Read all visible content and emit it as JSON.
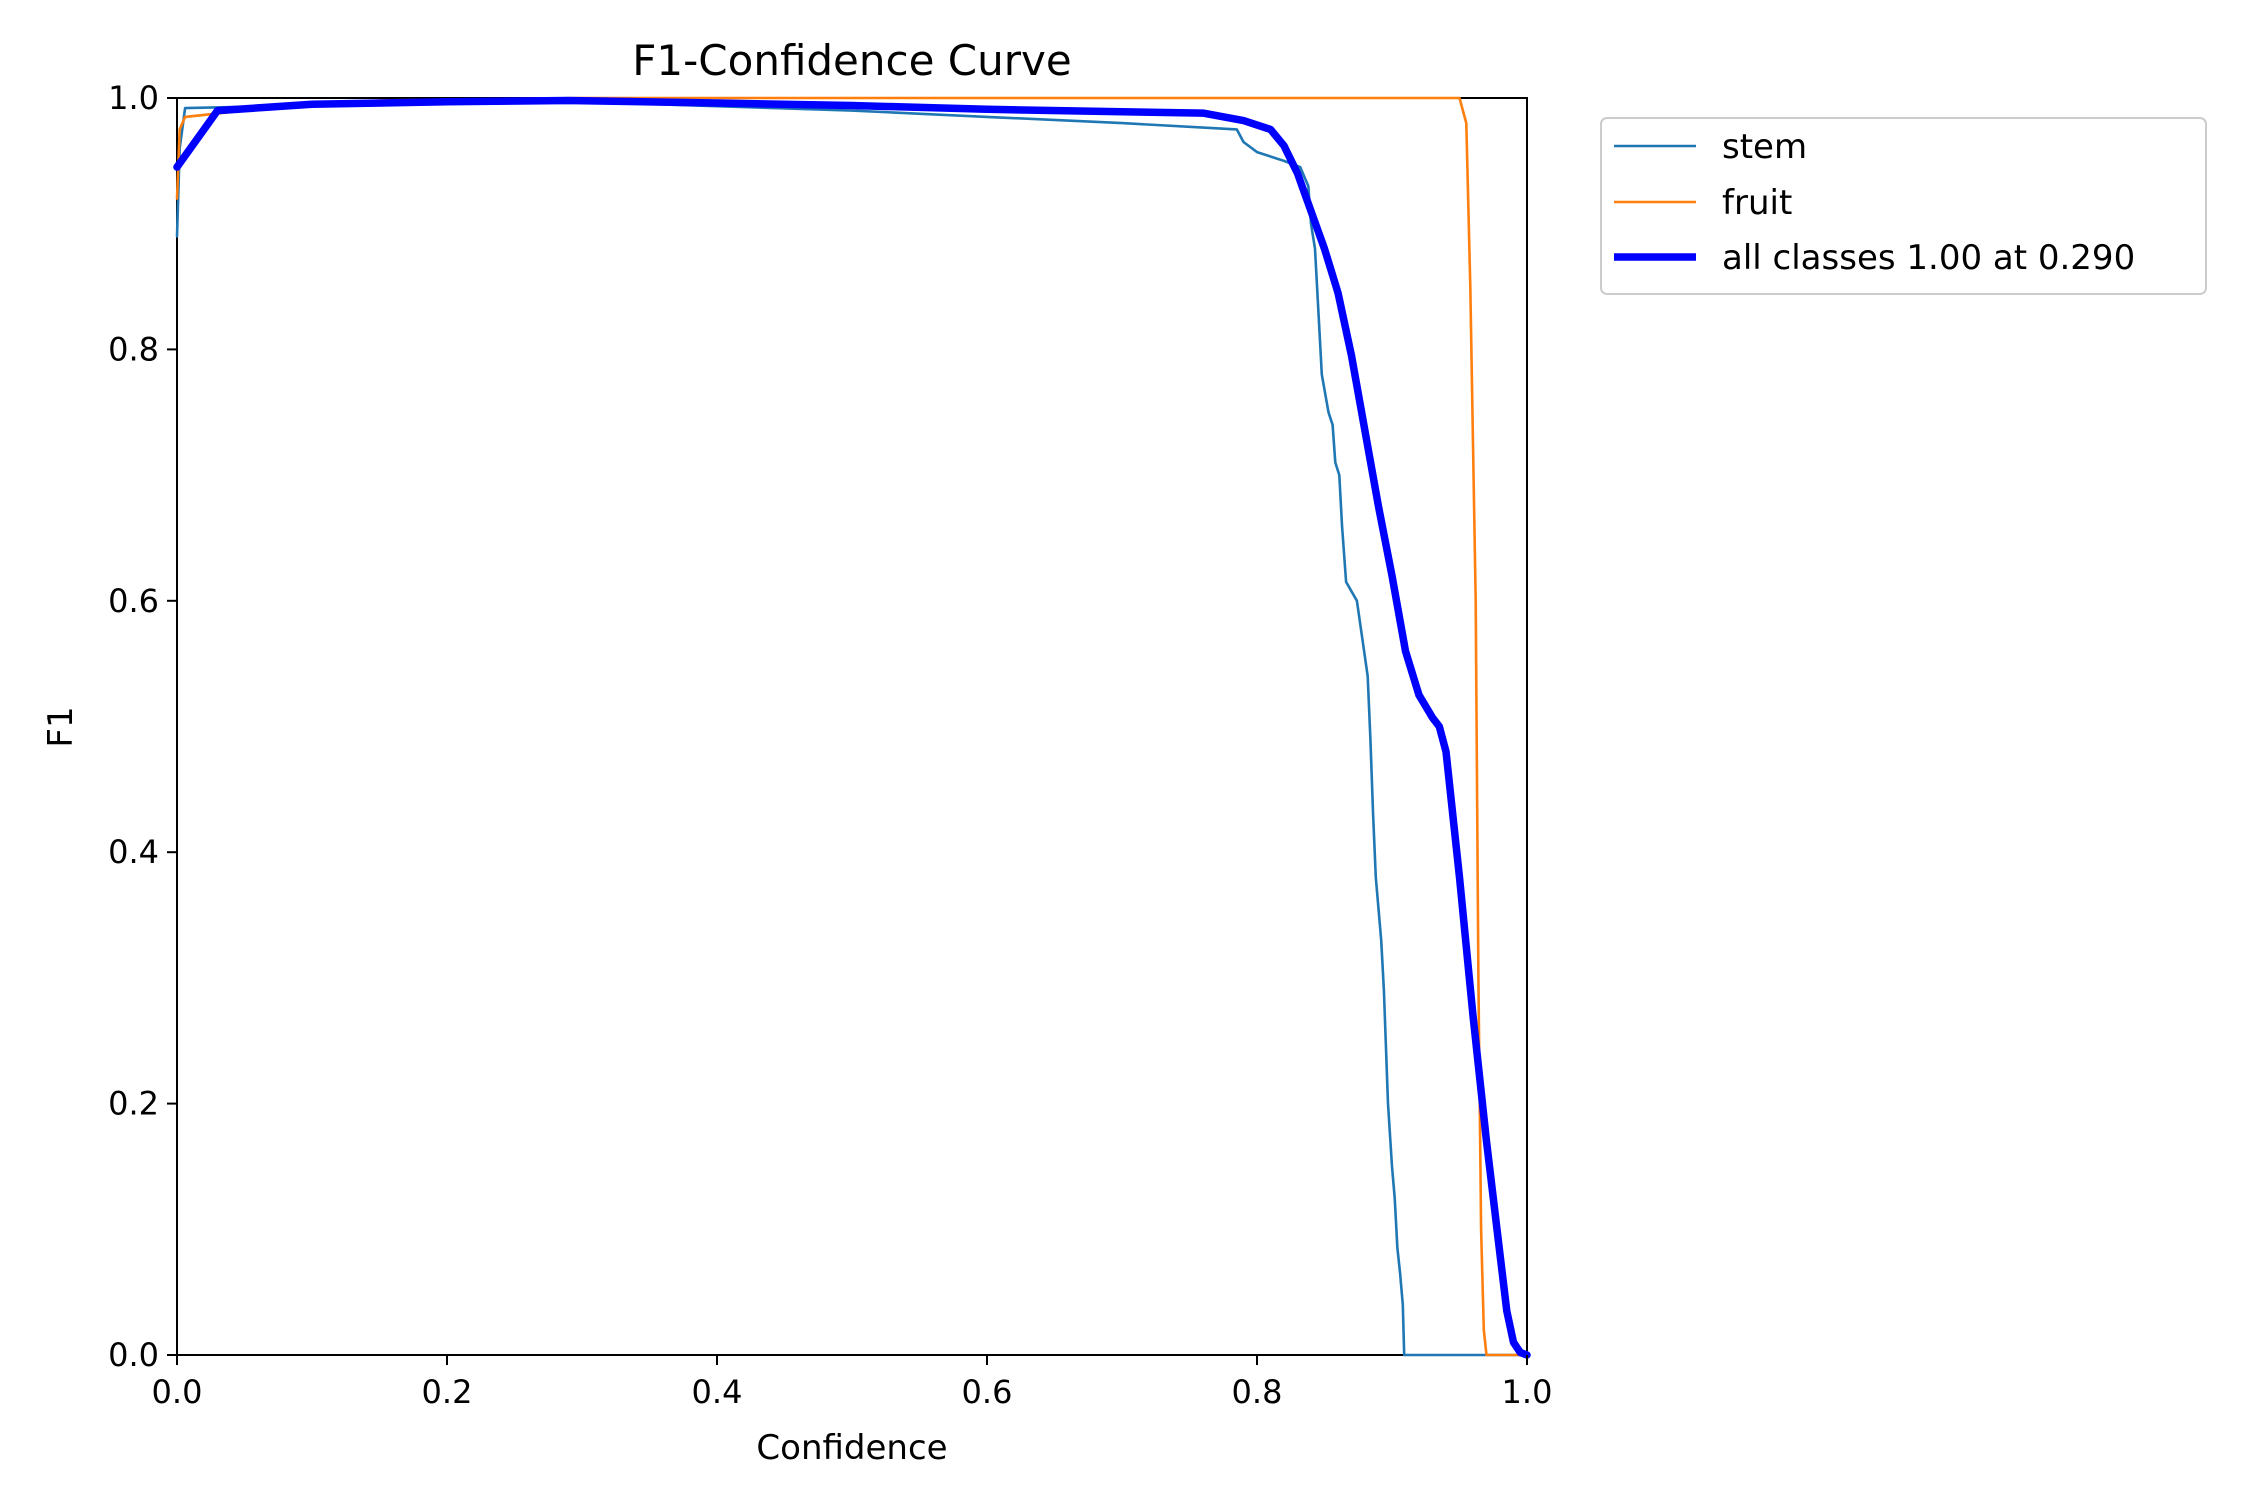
{
  "chart_data": {
    "type": "line",
    "title": "F1-Confidence Curve",
    "xlabel": "Confidence",
    "ylabel": "F1",
    "xlim": [
      0.0,
      1.0
    ],
    "ylim": [
      0.0,
      1.0
    ],
    "xticks": [
      "0.0",
      "0.2",
      "0.4",
      "0.6",
      "0.8",
      "1.0"
    ],
    "yticks": [
      "0.0",
      "0.2",
      "0.4",
      "0.6",
      "0.8",
      "1.0"
    ],
    "grid": false,
    "legend_position": "outside-top-right",
    "series": [
      {
        "name": "stem",
        "color": "#1f77b4",
        "width": 2.6,
        "points": [
          [
            0.0,
            0.89
          ],
          [
            0.002,
            0.96
          ],
          [
            0.006,
            0.992
          ],
          [
            0.05,
            0.993
          ],
          [
            0.2,
            0.996
          ],
          [
            0.3,
            0.997
          ],
          [
            0.5,
            0.99
          ],
          [
            0.6,
            0.985
          ],
          [
            0.7,
            0.98
          ],
          [
            0.785,
            0.975
          ],
          [
            0.79,
            0.965
          ],
          [
            0.8,
            0.957
          ],
          [
            0.82,
            0.95
          ],
          [
            0.832,
            0.945
          ],
          [
            0.838,
            0.93
          ],
          [
            0.84,
            0.9
          ],
          [
            0.843,
            0.88
          ],
          [
            0.846,
            0.82
          ],
          [
            0.848,
            0.78
          ],
          [
            0.853,
            0.75
          ],
          [
            0.856,
            0.74
          ],
          [
            0.858,
            0.71
          ],
          [
            0.861,
            0.7
          ],
          [
            0.863,
            0.66
          ],
          [
            0.866,
            0.615
          ],
          [
            0.874,
            0.6
          ],
          [
            0.878,
            0.57
          ],
          [
            0.882,
            0.54
          ],
          [
            0.884,
            0.49
          ],
          [
            0.886,
            0.43
          ],
          [
            0.888,
            0.38
          ],
          [
            0.892,
            0.33
          ],
          [
            0.894,
            0.29
          ],
          [
            0.897,
            0.2
          ],
          [
            0.9,
            0.15
          ],
          [
            0.902,
            0.125
          ],
          [
            0.904,
            0.085
          ],
          [
            0.906,
            0.065
          ],
          [
            0.908,
            0.04
          ],
          [
            0.909,
            0.0
          ],
          [
            1.0,
            0.0
          ]
        ]
      },
      {
        "name": "fruit",
        "color": "#ff7f0e",
        "width": 2.6,
        "points": [
          [
            0.0,
            0.92
          ],
          [
            0.002,
            0.975
          ],
          [
            0.006,
            0.985
          ],
          [
            0.05,
            0.99
          ],
          [
            0.15,
            0.998
          ],
          [
            0.3,
            1.0
          ],
          [
            0.95,
            1.0
          ],
          [
            0.955,
            0.98
          ],
          [
            0.958,
            0.85
          ],
          [
            0.962,
            0.6
          ],
          [
            0.964,
            0.3
          ],
          [
            0.966,
            0.1
          ],
          [
            0.968,
            0.02
          ],
          [
            0.97,
            0.0
          ],
          [
            1.0,
            0.0
          ]
        ]
      },
      {
        "name": "all classes 1.00 at 0.290",
        "color": "#0000ff",
        "width": 7.5,
        "points": [
          [
            0.0,
            0.945
          ],
          [
            0.03,
            0.99
          ],
          [
            0.1,
            0.995
          ],
          [
            0.2,
            0.997
          ],
          [
            0.29,
            0.998
          ],
          [
            0.4,
            0.996
          ],
          [
            0.5,
            0.994
          ],
          [
            0.6,
            0.991
          ],
          [
            0.7,
            0.989
          ],
          [
            0.76,
            0.988
          ],
          [
            0.79,
            0.982
          ],
          [
            0.81,
            0.975
          ],
          [
            0.82,
            0.962
          ],
          [
            0.83,
            0.94
          ],
          [
            0.84,
            0.91
          ],
          [
            0.85,
            0.88
          ],
          [
            0.86,
            0.845
          ],
          [
            0.87,
            0.795
          ],
          [
            0.88,
            0.735
          ],
          [
            0.89,
            0.675
          ],
          [
            0.9,
            0.62
          ],
          [
            0.91,
            0.56
          ],
          [
            0.92,
            0.525
          ],
          [
            0.93,
            0.507
          ],
          [
            0.935,
            0.5
          ],
          [
            0.94,
            0.48
          ],
          [
            0.95,
            0.38
          ],
          [
            0.96,
            0.27
          ],
          [
            0.97,
            0.17
          ],
          [
            0.98,
            0.08
          ],
          [
            0.985,
            0.035
          ],
          [
            0.99,
            0.01
          ],
          [
            0.995,
            0.002
          ],
          [
            1.0,
            0.0
          ]
        ]
      }
    ]
  }
}
